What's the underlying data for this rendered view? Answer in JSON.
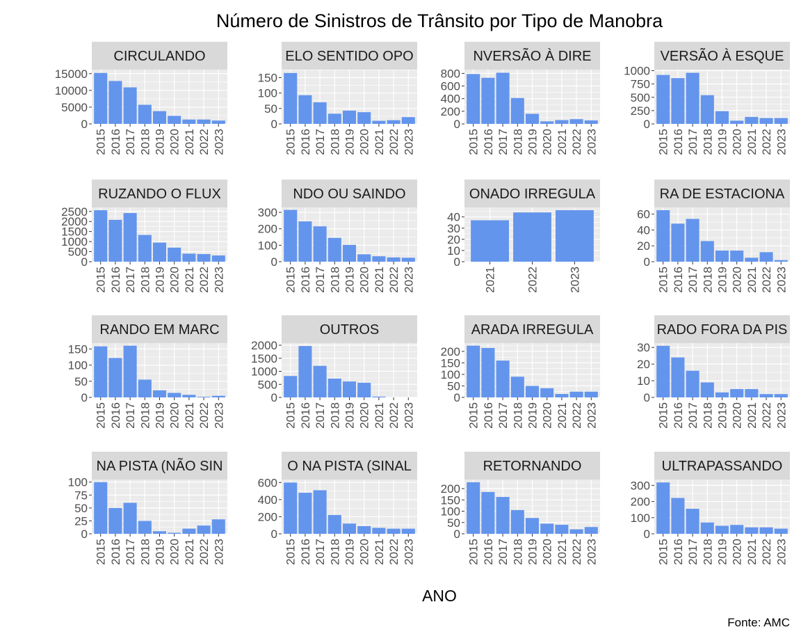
{
  "chart_data": {
    "type": "bar",
    "title": "Número de Sinistros de Trânsito por Tipo de Manobra",
    "xlabel": "ANO",
    "ylabel": "",
    "caption": "Fonte: AMC",
    "bar_color": "#6495ED",
    "panel_bg": "#EBEBEB",
    "strip_bg": "#D9D9D9",
    "grid": true,
    "facets": [
      {
        "label": "CIRCULANDO",
        "categories": [
          "2015",
          "2016",
          "2017",
          "2018",
          "2019",
          "2020",
          "2021",
          "2022",
          "2023"
        ],
        "values": [
          15200,
          12800,
          10900,
          5700,
          3800,
          2400,
          1300,
          1300,
          1000
        ],
        "ymax": 16200,
        "yticks": [
          0,
          5000,
          10000,
          15000
        ]
      },
      {
        "label": "ELO SENTIDO OPO",
        "categories": [
          "2015",
          "2016",
          "2017",
          "2018",
          "2019",
          "2020",
          "2021",
          "2022",
          "2023"
        ],
        "values": [
          165,
          93,
          70,
          33,
          43,
          38,
          10,
          12,
          22
        ],
        "ymax": 176,
        "yticks": [
          0,
          50,
          100,
          150
        ]
      },
      {
        "label": "NVERSÃO À DIRE",
        "categories": [
          "2015",
          "2016",
          "2017",
          "2018",
          "2019",
          "2020",
          "2021",
          "2022",
          "2023"
        ],
        "values": [
          790,
          730,
          810,
          410,
          160,
          40,
          60,
          75,
          55
        ],
        "ymax": 860,
        "yticks": [
          0,
          200,
          400,
          600,
          800
        ]
      },
      {
        "label": "VERSÃO À ESQUE",
        "categories": [
          "2015",
          "2016",
          "2017",
          "2018",
          "2019",
          "2020",
          "2021",
          "2022",
          "2023"
        ],
        "values": [
          920,
          860,
          960,
          540,
          240,
          60,
          130,
          110,
          110
        ],
        "ymax": 1020,
        "yticks": [
          0,
          250,
          500,
          750,
          1000
        ]
      },
      {
        "label": "RUZANDO O FLUX",
        "categories": [
          "2015",
          "2016",
          "2017",
          "2018",
          "2019",
          "2020",
          "2021",
          "2022",
          "2023"
        ],
        "values": [
          2560,
          2080,
          2420,
          1330,
          950,
          700,
          400,
          380,
          310
        ],
        "ymax": 2700,
        "yticks": [
          0,
          500,
          1000,
          1500,
          2000,
          2500
        ]
      },
      {
        "label": "NDO OU SAINDO",
        "categories": [
          "2015",
          "2016",
          "2017",
          "2018",
          "2019",
          "2020",
          "2021",
          "2022",
          "2023"
        ],
        "values": [
          315,
          245,
          215,
          145,
          102,
          45,
          33,
          26,
          24
        ],
        "ymax": 330,
        "yticks": [
          0,
          100,
          200,
          300
        ]
      },
      {
        "label": "ONADO IRREGULA",
        "categories": [
          "2021",
          "2022",
          "2023"
        ],
        "values": [
          37,
          44,
          46
        ],
        "ymax": 48.5,
        "yticks": [
          0,
          10,
          20,
          30,
          40
        ]
      },
      {
        "label": "RA DE ESTACIONA",
        "categories": [
          "2015",
          "2016",
          "2017",
          "2018",
          "2019",
          "2020",
          "2021",
          "2022",
          "2023"
        ],
        "values": [
          65,
          48,
          54,
          26,
          14,
          14,
          5,
          12,
          2
        ],
        "ymax": 68.5,
        "yticks": [
          0,
          20,
          40,
          60
        ]
      },
      {
        "label": "RANDO EM MARC",
        "categories": [
          "2015",
          "2016",
          "2017",
          "2018",
          "2019",
          "2020",
          "2021",
          "2022",
          "2023"
        ],
        "values": [
          158,
          122,
          160,
          55,
          22,
          14,
          8,
          2,
          5
        ],
        "ymax": 168,
        "yticks": [
          0,
          50,
          100,
          150
        ]
      },
      {
        "label": "OUTROS",
        "categories": [
          "2015",
          "2016",
          "2017",
          "2018",
          "2019",
          "2020",
          "2021",
          "2022",
          "2023"
        ],
        "values": [
          820,
          1970,
          1210,
          720,
          610,
          560,
          30,
          0,
          0
        ],
        "ymax": 2080,
        "yticks": [
          0,
          500,
          1000,
          1500,
          2000
        ]
      },
      {
        "label": "ARADA IRREGULA",
        "categories": [
          "2015",
          "2016",
          "2017",
          "2018",
          "2019",
          "2020",
          "2021",
          "2022",
          "2023"
        ],
        "values": [
          225,
          215,
          160,
          90,
          50,
          40,
          15,
          25,
          25
        ],
        "ymax": 236,
        "yticks": [
          0,
          50,
          100,
          150,
          200
        ]
      },
      {
        "label": "RADO FORA DA PIS",
        "categories": [
          "2015",
          "2016",
          "2017",
          "2018",
          "2019",
          "2020",
          "2021",
          "2022",
          "2023"
        ],
        "values": [
          31,
          24,
          16,
          9,
          3,
          5,
          5,
          2,
          2
        ],
        "ymax": 32.6,
        "yticks": [
          0,
          10,
          20,
          30
        ]
      },
      {
        "label": "NA PISTA (NÃO SIN",
        "categories": [
          "2015",
          "2016",
          "2017",
          "2018",
          "2019",
          "2020",
          "2021",
          "2022",
          "2023"
        ],
        "values": [
          100,
          50,
          60,
          25,
          5,
          2,
          10,
          16,
          28
        ],
        "ymax": 105,
        "yticks": [
          0,
          25,
          50,
          75,
          100
        ]
      },
      {
        "label": "O NA PISTA (SINAL",
        "categories": [
          "2015",
          "2016",
          "2017",
          "2018",
          "2019",
          "2020",
          "2021",
          "2022",
          "2023"
        ],
        "values": [
          600,
          480,
          510,
          220,
          120,
          90,
          70,
          60,
          60
        ],
        "ymax": 635,
        "yticks": [
          0,
          200,
          400,
          600
        ]
      },
      {
        "label": "RETORNANDO",
        "categories": [
          "2015",
          "2016",
          "2017",
          "2018",
          "2019",
          "2020",
          "2021",
          "2022",
          "2023"
        ],
        "values": [
          228,
          185,
          163,
          105,
          70,
          45,
          40,
          20,
          30
        ],
        "ymax": 240,
        "yticks": [
          0,
          50,
          100,
          150,
          200
        ]
      },
      {
        "label": "ULTRAPASSANDO",
        "categories": [
          "2015",
          "2016",
          "2017",
          "2018",
          "2019",
          "2020",
          "2021",
          "2022",
          "2023"
        ],
        "values": [
          318,
          222,
          155,
          70,
          50,
          55,
          40,
          40,
          32
        ],
        "ymax": 336,
        "yticks": [
          0,
          100,
          200,
          300
        ]
      }
    ]
  }
}
